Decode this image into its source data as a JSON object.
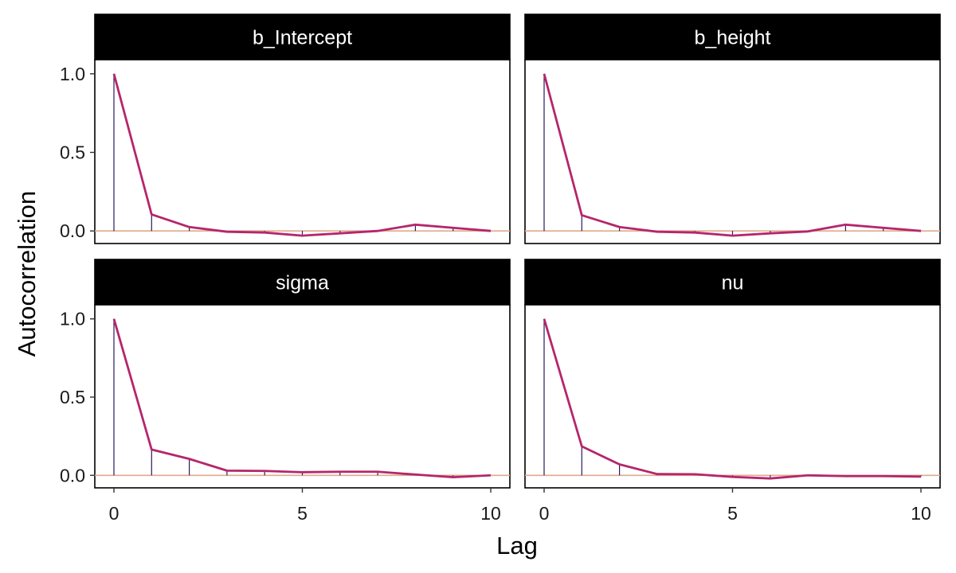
{
  "chart_data": {
    "type": "line",
    "xlabel": "Lag",
    "ylabel": "Autocorrelation",
    "xlim": [
      0,
      10
    ],
    "ylim": [
      -0.08,
      1.09
    ],
    "x_ticks": [
      0,
      5,
      10
    ],
    "y_ticks": [
      0,
      0.5,
      1.0
    ],
    "y_tick_labels": [
      "0.0",
      "0.5",
      "1.0"
    ],
    "lags": [
      0,
      1,
      2,
      3,
      4,
      5,
      6,
      7,
      8,
      9,
      10
    ],
    "panels": [
      {
        "name": "b_Intercept",
        "values": [
          1.0,
          0.105,
          0.025,
          -0.005,
          -0.01,
          -0.03,
          -0.015,
          0.0,
          0.04,
          0.02,
          0.0
        ]
      },
      {
        "name": "b_height",
        "values": [
          1.0,
          0.1,
          0.025,
          -0.005,
          -0.01,
          -0.03,
          -0.015,
          -0.003,
          0.04,
          0.02,
          0.0
        ]
      },
      {
        "name": "sigma",
        "values": [
          1.0,
          0.165,
          0.105,
          0.03,
          0.028,
          0.02,
          0.023,
          0.023,
          0.005,
          -0.012,
          0.0
        ]
      },
      {
        "name": "nu",
        "values": [
          1.0,
          0.185,
          0.07,
          0.008,
          0.007,
          -0.01,
          -0.02,
          0.0,
          -0.005,
          -0.005,
          -0.008
        ]
      }
    ],
    "colors": {
      "line": "#b5266b",
      "spike": "#2a1a5e",
      "zero_line": "#e0a98e",
      "strip_background": "#000000",
      "strip_text": "#ffffff"
    }
  }
}
